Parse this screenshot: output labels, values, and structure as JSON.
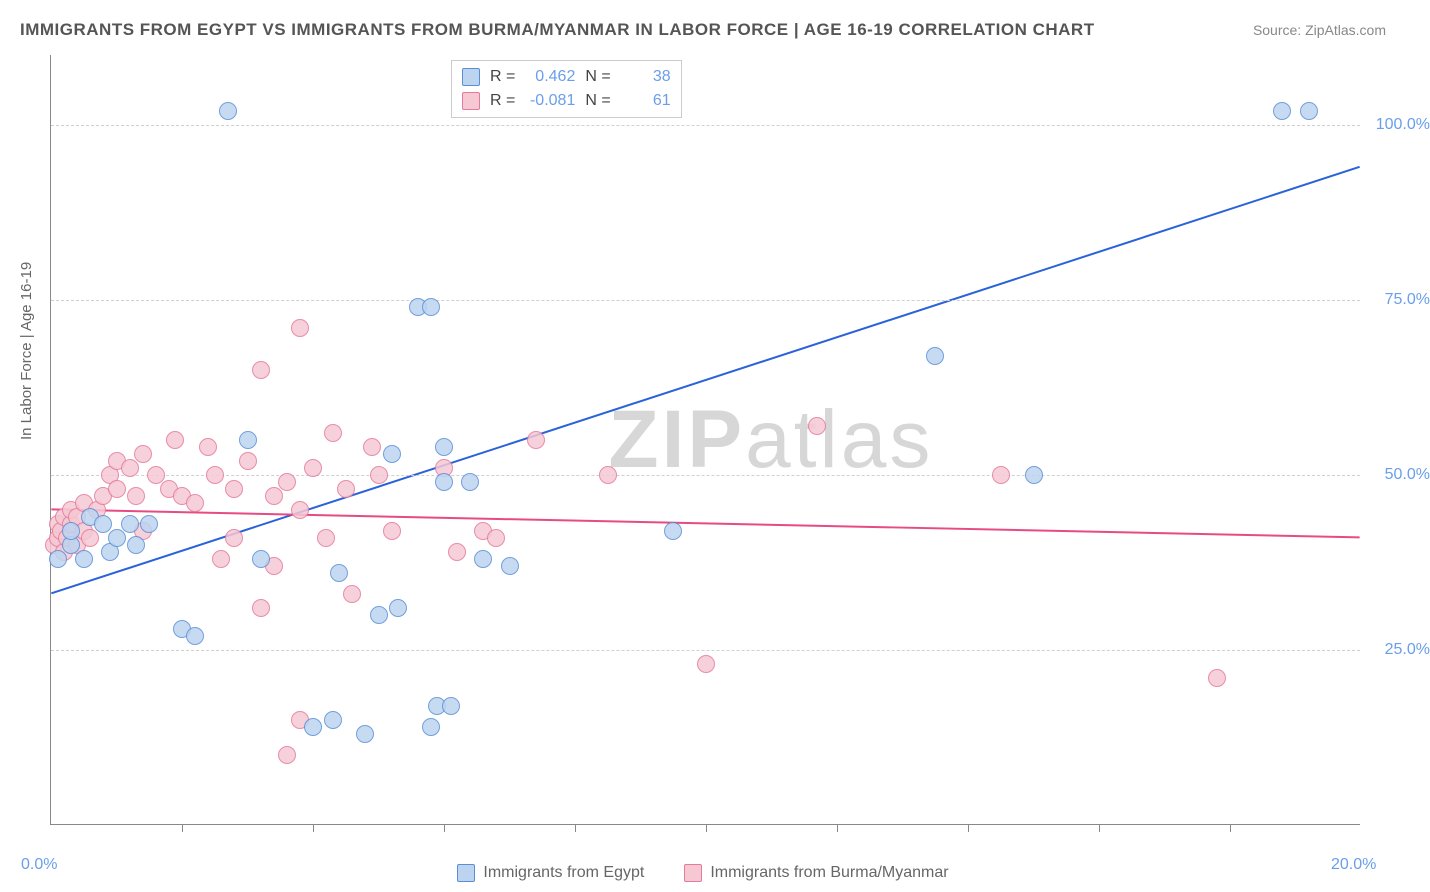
{
  "title": "IMMIGRANTS FROM EGYPT VS IMMIGRANTS FROM BURMA/MYANMAR IN LABOR FORCE | AGE 16-19 CORRELATION CHART",
  "source": "Source: ZipAtlas.com",
  "watermark": "ZIPatlas",
  "y_axis_label": "In Labor Force | Age 16-19",
  "chart": {
    "type": "scatter",
    "xlim": [
      0,
      20
    ],
    "ylim": [
      0,
      110
    ],
    "x_ticks": [
      0,
      20
    ],
    "x_tick_labels": [
      "0.0%",
      "20.0%"
    ],
    "y_ticks": [
      25,
      50,
      75,
      100
    ],
    "y_tick_labels": [
      "25.0%",
      "50.0%",
      "75.0%",
      "100.0%"
    ],
    "x_minor_ticks": [
      2,
      4,
      6,
      8,
      10,
      12,
      14,
      16,
      18
    ],
    "plot_bg": "#ffffff",
    "grid_color": "#d0d0d0",
    "axis_color": "#888888",
    "tick_label_color": "#6a9eeb",
    "marker_radius": 9,
    "marker_stroke_width": 1.5,
    "trend_line_width": 2
  },
  "series": [
    {
      "key": "egypt",
      "label": "Immigrants from Egypt",
      "fill_color": "#bdd4f0",
      "stroke_color": "#5a8fd6",
      "line_color": "#2962d9",
      "stats": {
        "R": "0.462",
        "N": "38"
      },
      "trend": {
        "x1": 0,
        "y1": 33,
        "x2": 20,
        "y2": 94
      },
      "points": [
        {
          "x": 0.1,
          "y": 38
        },
        {
          "x": 0.3,
          "y": 40
        },
        {
          "x": 0.3,
          "y": 42
        },
        {
          "x": 0.5,
          "y": 38
        },
        {
          "x": 0.6,
          "y": 44
        },
        {
          "x": 0.8,
          "y": 43
        },
        {
          "x": 0.9,
          "y": 39
        },
        {
          "x": 1.0,
          "y": 41
        },
        {
          "x": 1.2,
          "y": 43
        },
        {
          "x": 1.3,
          "y": 40
        },
        {
          "x": 1.5,
          "y": 43
        },
        {
          "x": 2.0,
          "y": 28
        },
        {
          "x": 2.2,
          "y": 27
        },
        {
          "x": 2.7,
          "y": 102
        },
        {
          "x": 3.0,
          "y": 55
        },
        {
          "x": 3.2,
          "y": 38
        },
        {
          "x": 4.0,
          "y": 14
        },
        {
          "x": 4.3,
          "y": 15
        },
        {
          "x": 4.4,
          "y": 36
        },
        {
          "x": 4.8,
          "y": 13
        },
        {
          "x": 5.0,
          "y": 30
        },
        {
          "x": 5.2,
          "y": 53
        },
        {
          "x": 5.3,
          "y": 31
        },
        {
          "x": 5.6,
          "y": 74
        },
        {
          "x": 5.8,
          "y": 74
        },
        {
          "x": 5.8,
          "y": 14
        },
        {
          "x": 5.9,
          "y": 17
        },
        {
          "x": 6.0,
          "y": 49
        },
        {
          "x": 6.0,
          "y": 54
        },
        {
          "x": 6.1,
          "y": 17
        },
        {
          "x": 6.4,
          "y": 49
        },
        {
          "x": 6.6,
          "y": 38
        },
        {
          "x": 7.0,
          "y": 37
        },
        {
          "x": 9.5,
          "y": 42
        },
        {
          "x": 13.5,
          "y": 67
        },
        {
          "x": 15.0,
          "y": 50
        },
        {
          "x": 18.8,
          "y": 102
        },
        {
          "x": 19.2,
          "y": 102
        }
      ]
    },
    {
      "key": "burma",
      "label": "Immigrants from Burma/Myanmar",
      "fill_color": "#f5c8d4",
      "stroke_color": "#e57a9a",
      "line_color": "#e74b84",
      "stats": {
        "R": "-0.081",
        "N": "61"
      },
      "trend": {
        "x1": 0,
        "y1": 45,
        "x2": 20,
        "y2": 41
      },
      "points": [
        {
          "x": 0.05,
          "y": 40
        },
        {
          "x": 0.1,
          "y": 41
        },
        {
          "x": 0.1,
          "y": 43
        },
        {
          "x": 0.15,
          "y": 42
        },
        {
          "x": 0.2,
          "y": 44
        },
        {
          "x": 0.2,
          "y": 39
        },
        {
          "x": 0.25,
          "y": 41
        },
        {
          "x": 0.3,
          "y": 43
        },
        {
          "x": 0.3,
          "y": 45
        },
        {
          "x": 0.4,
          "y": 40
        },
        {
          "x": 0.4,
          "y": 44
        },
        {
          "x": 0.5,
          "y": 42
        },
        {
          "x": 0.5,
          "y": 46
        },
        {
          "x": 0.6,
          "y": 41
        },
        {
          "x": 0.7,
          "y": 45
        },
        {
          "x": 0.8,
          "y": 47
        },
        {
          "x": 0.9,
          "y": 50
        },
        {
          "x": 1.0,
          "y": 48
        },
        {
          "x": 1.0,
          "y": 52
        },
        {
          "x": 1.2,
          "y": 51
        },
        {
          "x": 1.3,
          "y": 47
        },
        {
          "x": 1.4,
          "y": 53
        },
        {
          "x": 1.4,
          "y": 42
        },
        {
          "x": 1.6,
          "y": 50
        },
        {
          "x": 1.8,
          "y": 48
        },
        {
          "x": 1.9,
          "y": 55
        },
        {
          "x": 2.0,
          "y": 47
        },
        {
          "x": 2.2,
          "y": 46
        },
        {
          "x": 2.4,
          "y": 54
        },
        {
          "x": 2.5,
          "y": 50
        },
        {
          "x": 2.6,
          "y": 38
        },
        {
          "x": 2.8,
          "y": 48
        },
        {
          "x": 2.8,
          "y": 41
        },
        {
          "x": 3.0,
          "y": 52
        },
        {
          "x": 3.2,
          "y": 65
        },
        {
          "x": 3.2,
          "y": 31
        },
        {
          "x": 3.4,
          "y": 47
        },
        {
          "x": 3.4,
          "y": 37
        },
        {
          "x": 3.6,
          "y": 49
        },
        {
          "x": 3.6,
          "y": 10
        },
        {
          "x": 3.8,
          "y": 71
        },
        {
          "x": 3.8,
          "y": 45
        },
        {
          "x": 3.8,
          "y": 15
        },
        {
          "x": 4.0,
          "y": 51
        },
        {
          "x": 4.2,
          "y": 41
        },
        {
          "x": 4.3,
          "y": 56
        },
        {
          "x": 4.5,
          "y": 48
        },
        {
          "x": 4.6,
          "y": 33
        },
        {
          "x": 4.9,
          "y": 54
        },
        {
          "x": 5.0,
          "y": 50
        },
        {
          "x": 5.2,
          "y": 42
        },
        {
          "x": 6.0,
          "y": 51
        },
        {
          "x": 6.2,
          "y": 39
        },
        {
          "x": 6.6,
          "y": 42
        },
        {
          "x": 6.8,
          "y": 41
        },
        {
          "x": 7.4,
          "y": 55
        },
        {
          "x": 8.5,
          "y": 50
        },
        {
          "x": 10.0,
          "y": 23
        },
        {
          "x": 11.7,
          "y": 57
        },
        {
          "x": 14.5,
          "y": 50
        },
        {
          "x": 17.8,
          "y": 21
        }
      ]
    }
  ],
  "stats_labels": {
    "R": "R =",
    "N": "N ="
  },
  "legend": {
    "egypt": "Immigrants from Egypt",
    "burma": "Immigrants from Burma/Myanmar"
  }
}
